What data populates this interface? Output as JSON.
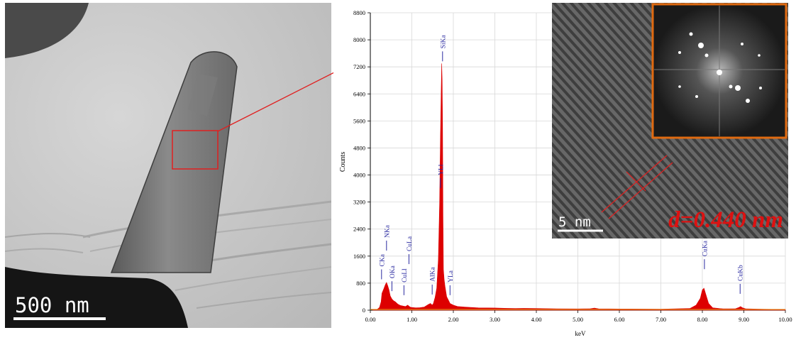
{
  "tem_panel": {
    "scale_label": "500 nm"
  },
  "hrtem_inset": {
    "scale_label": "5 nm",
    "d_spacing_label": "d=0.440 nm"
  },
  "chart_data": {
    "type": "line",
    "xlabel": "keV",
    "ylabel": "Counts",
    "xlim": [
      0,
      10
    ],
    "ylim": [
      0,
      8800
    ],
    "x_ticks": [
      "0.00",
      "1.00",
      "2.00",
      "3.00",
      "4.00",
      "5.00",
      "6.00",
      "7.00",
      "8.00",
      "9.00",
      "10.00"
    ],
    "y_ticks": [
      "0",
      "800",
      "1600",
      "2400",
      "3200",
      "4000",
      "4800",
      "5600",
      "6400",
      "7200",
      "8000",
      "8800"
    ],
    "fill_color": "#dd0000",
    "series": [
      {
        "x": [
          0.05,
          0.15,
          0.22,
          0.26,
          0.28,
          0.33,
          0.36,
          0.39,
          0.42,
          0.45,
          0.48,
          0.52,
          0.56,
          0.6,
          0.66,
          0.72,
          0.8,
          0.85,
          0.9,
          0.93,
          0.96,
          1.0,
          1.1,
          1.2,
          1.3,
          1.4,
          1.45,
          1.49,
          1.52,
          1.56,
          1.6,
          1.64,
          1.67,
          1.69,
          1.71,
          1.72,
          1.73,
          1.74,
          1.75,
          1.76,
          1.78,
          1.8,
          1.84,
          1.9,
          1.92,
          1.95,
          2.0,
          2.1,
          2.3,
          2.6,
          3.0,
          3.3,
          3.5,
          3.7,
          4.0,
          4.5,
          5.0,
          5.3,
          5.4,
          5.5,
          6.0,
          7.0,
          7.7,
          7.85,
          7.95,
          8.0,
          8.04,
          8.08,
          8.15,
          8.25,
          8.5,
          8.8,
          8.88,
          8.92,
          8.97,
          9.05,
          9.5,
          10.0
        ],
        "y": [
          0,
          10,
          80,
          250,
          500,
          650,
          750,
          820,
          720,
          600,
          420,
          330,
          280,
          250,
          180,
          140,
          120,
          110,
          150,
          120,
          90,
          80,
          70,
          75,
          95,
          170,
          200,
          150,
          200,
          380,
          650,
          1500,
          3200,
          5200,
          6600,
          7300,
          6800,
          5500,
          2800,
          1200,
          900,
          700,
          400,
          250,
          200,
          180,
          150,
          110,
          90,
          70,
          65,
          55,
          50,
          55,
          50,
          40,
          38,
          45,
          60,
          40,
          35,
          32,
          50,
          150,
          350,
          600,
          650,
          480,
          200,
          70,
          40,
          45,
          80,
          110,
          70,
          40,
          28,
          22
        ]
      }
    ],
    "peak_labels": [
      {
        "text": "CKa",
        "x": 0.27,
        "y": 1250
      },
      {
        "text": "NKa",
        "x": 0.39,
        "y": 2100
      },
      {
        "text": "OKa",
        "x": 0.52,
        "y": 900
      },
      {
        "text": "CuLl",
        "x": 0.81,
        "y": 780
      },
      {
        "text": "CuLa",
        "x": 0.93,
        "y": 1700
      },
      {
        "text": "AlKa",
        "x": 1.49,
        "y": 800
      },
      {
        "text": "SiKa",
        "x": 1.74,
        "y": 7700
      },
      {
        "text": "YLl",
        "x": 1.69,
        "y": 3950
      },
      {
        "text": "YLa",
        "x": 1.92,
        "y": 780
      },
      {
        "text": "CuKa",
        "x": 8.05,
        "y": 1550
      },
      {
        "text": "CuKb",
        "x": 8.91,
        "y": 820
      }
    ]
  }
}
